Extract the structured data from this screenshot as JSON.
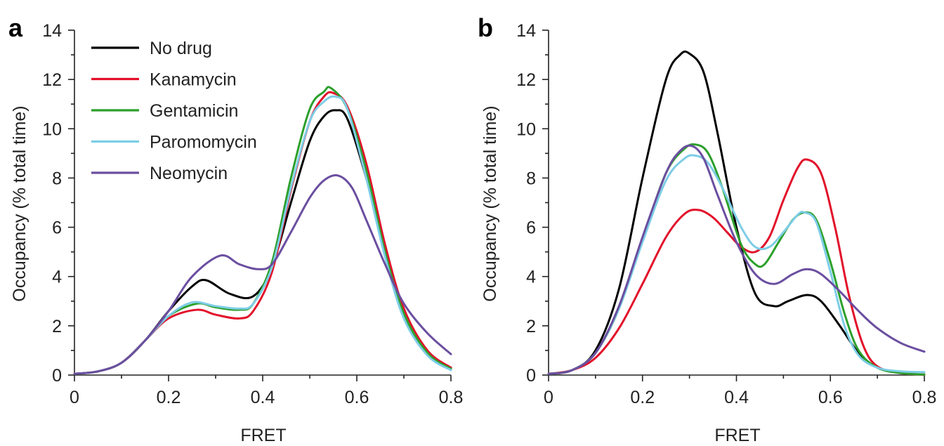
{
  "chart_data": [
    {
      "panel": "a",
      "type": "line",
      "xlabel": "FRET",
      "ylabel": "Occupancy (% total time)",
      "xlim": [
        0,
        0.8
      ],
      "ylim": [
        0,
        14
      ],
      "xticks": [
        "0",
        "0.2",
        "0.4",
        "0.6",
        "0.8"
      ],
      "yticks": [
        "0",
        "2",
        "4",
        "6",
        "8",
        "10",
        "12",
        "14"
      ],
      "grid": false,
      "legend": "top-left",
      "series": [
        {
          "name": "No drug",
          "color": "#000000",
          "x": [
            0,
            0.05,
            0.1,
            0.15,
            0.2,
            0.25,
            0.28,
            0.33,
            0.38,
            0.42,
            0.46,
            0.5,
            0.53,
            0.555,
            0.58,
            0.62,
            0.66,
            0.7,
            0.75,
            0.8
          ],
          "y": [
            0.05,
            0.15,
            0.5,
            1.4,
            2.6,
            3.6,
            3.85,
            3.3,
            3.2,
            4.4,
            7.0,
            9.5,
            10.5,
            10.75,
            10.4,
            8.0,
            5.0,
            2.5,
            0.9,
            0.3
          ]
        },
        {
          "name": "Kanamycin",
          "color": "#e2112a",
          "x": [
            0,
            0.05,
            0.1,
            0.15,
            0.2,
            0.26,
            0.3,
            0.35,
            0.38,
            0.42,
            0.46,
            0.5,
            0.53,
            0.55,
            0.58,
            0.62,
            0.66,
            0.7,
            0.75,
            0.8
          ],
          "y": [
            0.05,
            0.15,
            0.5,
            1.4,
            2.3,
            2.65,
            2.45,
            2.3,
            2.6,
            4.2,
            7.5,
            10.3,
            11.3,
            11.45,
            10.9,
            8.6,
            5.3,
            2.7,
            1.0,
            0.3
          ]
        },
        {
          "name": "Gentamicin",
          "color": "#2ca02c",
          "x": [
            0,
            0.05,
            0.1,
            0.15,
            0.2,
            0.26,
            0.3,
            0.35,
            0.38,
            0.42,
            0.46,
            0.5,
            0.53,
            0.545,
            0.58,
            0.62,
            0.66,
            0.7,
            0.75,
            0.8
          ],
          "y": [
            0.05,
            0.15,
            0.5,
            1.4,
            2.4,
            2.9,
            2.75,
            2.65,
            2.9,
            4.6,
            8.0,
            10.8,
            11.5,
            11.65,
            10.8,
            8.3,
            5.0,
            2.5,
            0.9,
            0.25
          ]
        },
        {
          "name": "Paromomycin",
          "color": "#7dcde6",
          "x": [
            0,
            0.05,
            0.1,
            0.15,
            0.2,
            0.25,
            0.3,
            0.35,
            0.38,
            0.42,
            0.46,
            0.5,
            0.53,
            0.555,
            0.58,
            0.62,
            0.66,
            0.7,
            0.75,
            0.8
          ],
          "y": [
            0.05,
            0.15,
            0.5,
            1.4,
            2.4,
            2.95,
            2.8,
            2.7,
            2.9,
            4.4,
            7.6,
            10.3,
            11.1,
            11.3,
            10.8,
            8.0,
            4.8,
            2.3,
            0.8,
            0.2
          ]
        },
        {
          "name": "Neomycin",
          "color": "#6b4ea0",
          "x": [
            0,
            0.05,
            0.1,
            0.15,
            0.2,
            0.25,
            0.31,
            0.35,
            0.39,
            0.42,
            0.46,
            0.5,
            0.53,
            0.56,
            0.59,
            0.62,
            0.66,
            0.7,
            0.75,
            0.8
          ],
          "y": [
            0.05,
            0.15,
            0.5,
            1.4,
            2.6,
            4.0,
            4.85,
            4.5,
            4.3,
            4.5,
            5.8,
            7.2,
            7.9,
            8.1,
            7.6,
            6.3,
            4.5,
            2.9,
            1.7,
            0.85
          ]
        }
      ]
    },
    {
      "panel": "b",
      "type": "line",
      "xlabel": "FRET",
      "ylabel": "Occupancy (% total time)",
      "xlim": [
        0,
        0.8
      ],
      "ylim": [
        0,
        14
      ],
      "xticks": [
        "0",
        "0.2",
        "0.4",
        "0.6",
        "0.8"
      ],
      "yticks": [
        "0",
        "2",
        "4",
        "6",
        "8",
        "10",
        "12",
        "14"
      ],
      "grid": false,
      "series": [
        {
          "name": "No drug",
          "color": "#000000",
          "x": [
            0,
            0.05,
            0.1,
            0.15,
            0.2,
            0.25,
            0.28,
            0.3,
            0.33,
            0.36,
            0.4,
            0.44,
            0.48,
            0.51,
            0.55,
            0.58,
            0.62,
            0.66,
            0.7,
            0.75,
            0.8
          ],
          "y": [
            0.05,
            0.2,
            1.0,
            3.5,
            8.0,
            12.0,
            13.0,
            13.05,
            12.3,
            9.8,
            6.0,
            3.3,
            2.8,
            3.0,
            3.25,
            3.0,
            2.0,
            0.9,
            0.3,
            0.08,
            0.02
          ]
        },
        {
          "name": "Kanamycin",
          "color": "#e2112a",
          "x": [
            0,
            0.05,
            0.1,
            0.15,
            0.2,
            0.25,
            0.29,
            0.32,
            0.35,
            0.38,
            0.41,
            0.44,
            0.47,
            0.5,
            0.53,
            0.55,
            0.58,
            0.61,
            0.64,
            0.67,
            0.7,
            0.75,
            0.8
          ],
          "y": [
            0.05,
            0.2,
            0.7,
            1.9,
            3.7,
            5.6,
            6.55,
            6.7,
            6.4,
            5.8,
            5.2,
            5.0,
            5.6,
            7.1,
            8.4,
            8.75,
            8.2,
            6.0,
            3.2,
            1.2,
            0.35,
            0.08,
            0.02
          ]
        },
        {
          "name": "Gentamicin",
          "color": "#2ca02c",
          "x": [
            0,
            0.05,
            0.1,
            0.15,
            0.2,
            0.25,
            0.29,
            0.315,
            0.34,
            0.37,
            0.41,
            0.44,
            0.46,
            0.49,
            0.52,
            0.545,
            0.57,
            0.6,
            0.63,
            0.66,
            0.7,
            0.75,
            0.8
          ],
          "y": [
            0.05,
            0.2,
            0.9,
            2.7,
            5.5,
            8.2,
            9.2,
            9.35,
            9.0,
            7.6,
            5.3,
            4.5,
            4.5,
            5.4,
            6.3,
            6.6,
            6.3,
            4.6,
            2.5,
            1.0,
            0.3,
            0.08,
            0.02
          ]
        },
        {
          "name": "Paromomycin",
          "color": "#7dcde6",
          "x": [
            0,
            0.05,
            0.1,
            0.15,
            0.2,
            0.25,
            0.29,
            0.315,
            0.34,
            0.37,
            0.41,
            0.44,
            0.47,
            0.5,
            0.53,
            0.545,
            0.57,
            0.6,
            0.63,
            0.66,
            0.7,
            0.75,
            0.8
          ],
          "y": [
            0.05,
            0.2,
            0.9,
            2.7,
            5.4,
            7.9,
            8.8,
            8.9,
            8.6,
            7.6,
            6.0,
            5.2,
            5.2,
            5.8,
            6.5,
            6.6,
            6.2,
            4.2,
            2.0,
            0.8,
            0.3,
            0.15,
            0.12
          ]
        },
        {
          "name": "Neomycin",
          "color": "#6b4ea0",
          "x": [
            0,
            0.05,
            0.1,
            0.15,
            0.2,
            0.25,
            0.28,
            0.305,
            0.33,
            0.36,
            0.4,
            0.44,
            0.48,
            0.52,
            0.55,
            0.58,
            0.62,
            0.66,
            0.7,
            0.75,
            0.8
          ],
          "y": [
            0.05,
            0.2,
            0.9,
            2.8,
            5.6,
            8.2,
            9.1,
            9.3,
            8.8,
            7.3,
            5.4,
            4.1,
            3.7,
            4.1,
            4.3,
            4.1,
            3.4,
            2.6,
            1.9,
            1.3,
            0.95
          ]
        }
      ]
    }
  ]
}
